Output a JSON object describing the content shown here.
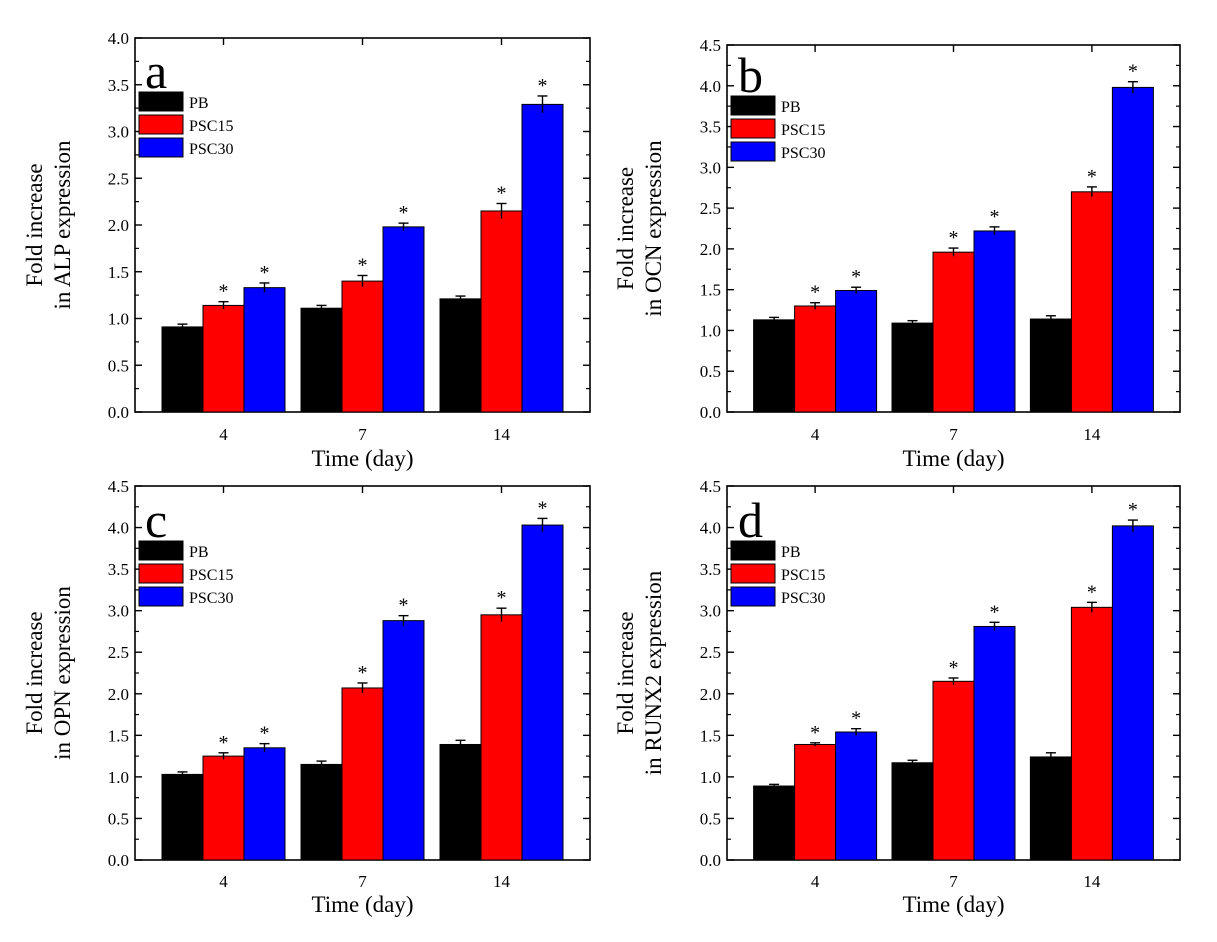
{
  "colors": {
    "PB": "#000000",
    "PSC15": "#ff0000",
    "PSC30": "#0000ff"
  },
  "chart_data": [
    {
      "type": "bar",
      "panel": "a",
      "categories": [
        "4",
        "7",
        "14"
      ],
      "xlabel": "Time (day)",
      "ylabel": [
        "Fold increase",
        "in ALP expression"
      ],
      "ylim": [
        0,
        4.0
      ],
      "yticks": [
        "0.0",
        "0.5",
        "1.0",
        "1.5",
        "2.0",
        "2.5",
        "3.0",
        "3.5",
        "4.0"
      ],
      "legend_position": "top-left",
      "series": [
        {
          "name": "PB",
          "values": [
            0.91,
            1.11,
            1.21
          ],
          "errors": [
            0.03,
            0.03,
            0.03
          ],
          "significant": [
            false,
            false,
            false
          ]
        },
        {
          "name": "PSC15",
          "values": [
            1.14,
            1.4,
            2.15
          ],
          "errors": [
            0.04,
            0.06,
            0.08
          ],
          "significant": [
            true,
            true,
            true
          ]
        },
        {
          "name": "PSC30",
          "values": [
            1.33,
            1.98,
            3.29
          ],
          "errors": [
            0.05,
            0.04,
            0.09
          ],
          "significant": [
            true,
            true,
            true
          ]
        }
      ],
      "marker": "*"
    },
    {
      "type": "bar",
      "panel": "b",
      "categories": [
        "4",
        "7",
        "14"
      ],
      "xlabel": "Time (day)",
      "ylabel": [
        "Fold increase",
        "in OCN expression"
      ],
      "ylim": [
        0,
        4.5
      ],
      "yticks": [
        "0.0",
        "0.5",
        "1.0",
        "1.5",
        "2.0",
        "2.5",
        "3.0",
        "3.5",
        "4.0",
        "4.5"
      ],
      "legend_position": "top-left",
      "series": [
        {
          "name": "PB",
          "values": [
            1.13,
            1.09,
            1.14
          ],
          "errors": [
            0.03,
            0.03,
            0.04
          ],
          "significant": [
            false,
            false,
            false
          ]
        },
        {
          "name": "PSC15",
          "values": [
            1.3,
            1.96,
            2.7
          ],
          "errors": [
            0.04,
            0.05,
            0.06
          ],
          "significant": [
            true,
            true,
            true
          ]
        },
        {
          "name": "PSC30",
          "values": [
            1.49,
            2.22,
            3.98
          ],
          "errors": [
            0.04,
            0.05,
            0.07
          ],
          "significant": [
            true,
            true,
            true
          ]
        }
      ],
      "marker": "*"
    },
    {
      "type": "bar",
      "panel": "c",
      "categories": [
        "4",
        "7",
        "14"
      ],
      "xlabel": "Time (day)",
      "ylabel": [
        "Fold increase",
        "in OPN expression"
      ],
      "ylim": [
        0,
        4.5
      ],
      "yticks": [
        "0.0",
        "0.5",
        "1.0",
        "1.5",
        "2.0",
        "2.5",
        "3.0",
        "3.5",
        "4.0",
        "4.5"
      ],
      "legend_position": "top-left",
      "series": [
        {
          "name": "PB",
          "values": [
            1.03,
            1.15,
            1.39
          ],
          "errors": [
            0.03,
            0.04,
            0.05
          ],
          "significant": [
            false,
            false,
            false
          ]
        },
        {
          "name": "PSC15",
          "values": [
            1.25,
            2.07,
            2.95
          ],
          "errors": [
            0.04,
            0.06,
            0.08
          ],
          "significant": [
            true,
            true,
            true
          ]
        },
        {
          "name": "PSC30",
          "values": [
            1.35,
            2.88,
            4.03
          ],
          "errors": [
            0.05,
            0.06,
            0.08
          ],
          "significant": [
            true,
            true,
            true
          ]
        }
      ],
      "marker": "*"
    },
    {
      "type": "bar",
      "panel": "d",
      "categories": [
        "4",
        "7",
        "14"
      ],
      "xlabel": "Time (day)",
      "ylabel": [
        "Fold increase",
        "in RUNX2 expression"
      ],
      "ylim": [
        0,
        4.5
      ],
      "yticks": [
        "0.0",
        "0.5",
        "1.0",
        "1.5",
        "2.0",
        "2.5",
        "3.0",
        "3.5",
        "4.0",
        "4.5"
      ],
      "legend_position": "top-left",
      "series": [
        {
          "name": "PB",
          "values": [
            0.89,
            1.17,
            1.24
          ],
          "errors": [
            0.02,
            0.03,
            0.05
          ],
          "significant": [
            false,
            false,
            false
          ]
        },
        {
          "name": "PSC15",
          "values": [
            1.39,
            2.15,
            3.04
          ],
          "errors": [
            0.02,
            0.04,
            0.06
          ],
          "significant": [
            true,
            true,
            true
          ]
        },
        {
          "name": "PSC30",
          "values": [
            1.54,
            2.81,
            4.02
          ],
          "errors": [
            0.04,
            0.05,
            0.07
          ],
          "significant": [
            true,
            true,
            true
          ]
        }
      ],
      "marker": "*"
    }
  ]
}
